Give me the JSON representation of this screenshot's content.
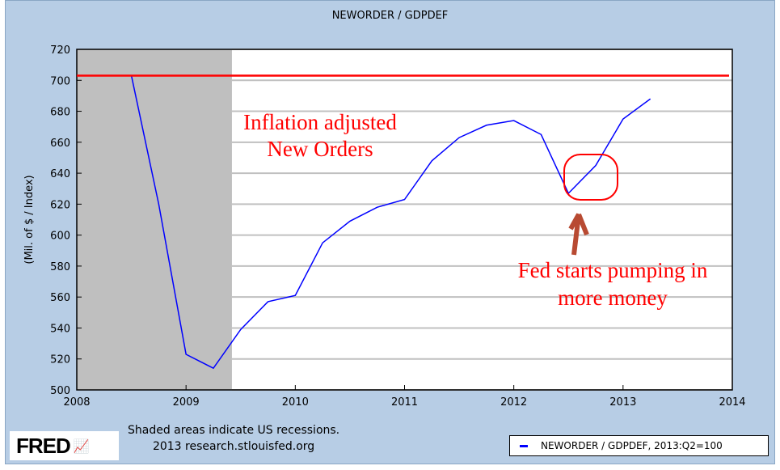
{
  "chart_data": {
    "type": "line",
    "title": "NEWORDER / GDPDEF",
    "ylabel": "(Mil. of $ / Index)",
    "xlabel": "",
    "xlim": [
      2008,
      2014
    ],
    "ylim": [
      500,
      720
    ],
    "x_ticks": [
      "2008",
      "2009",
      "2010",
      "2011",
      "2012",
      "2013",
      "2014"
    ],
    "y_ticks": [
      "500",
      "520",
      "540",
      "560",
      "580",
      "600",
      "620",
      "640",
      "660",
      "680",
      "700",
      "720"
    ],
    "grid": "horizontal",
    "series": [
      {
        "name": "NEWORDER / GDPDEF, 2013:Q2=100",
        "color": "#0000ff",
        "x": [
          2008.5,
          2008.75,
          2009.0,
          2009.25,
          2009.5,
          2009.75,
          2010.0,
          2010.25,
          2010.5,
          2010.75,
          2011.0,
          2011.25,
          2011.5,
          2011.75,
          2012.0,
          2012.25,
          2012.5,
          2012.75,
          2013.0,
          2013.25
        ],
        "y": [
          703,
          620,
          523,
          514,
          539,
          557,
          561,
          595,
          609,
          618,
          623,
          648,
          663,
          671,
          674,
          665,
          627,
          645,
          675,
          688
        ]
      }
    ],
    "recessions": [
      [
        2008.0,
        2009.42
      ]
    ],
    "reference_line": {
      "y": 703,
      "color": "#ff0000"
    },
    "annotations": [
      {
        "text": [
          "Inflation adjusted",
          "New Orders"
        ],
        "color": "#ff0000"
      },
      {
        "text": [
          "Fed starts pumping in",
          "more money"
        ],
        "color": "#ff0000"
      }
    ],
    "legend_placement": "bottom-right"
  },
  "footer": {
    "note_line1": "Shaded areas indicate US recessions.",
    "note_line2": "2013 research.stlouisfed.org",
    "logo": "FRED",
    "legend_label": "NEWORDER / GDPDEF, 2013:Q2=100"
  }
}
